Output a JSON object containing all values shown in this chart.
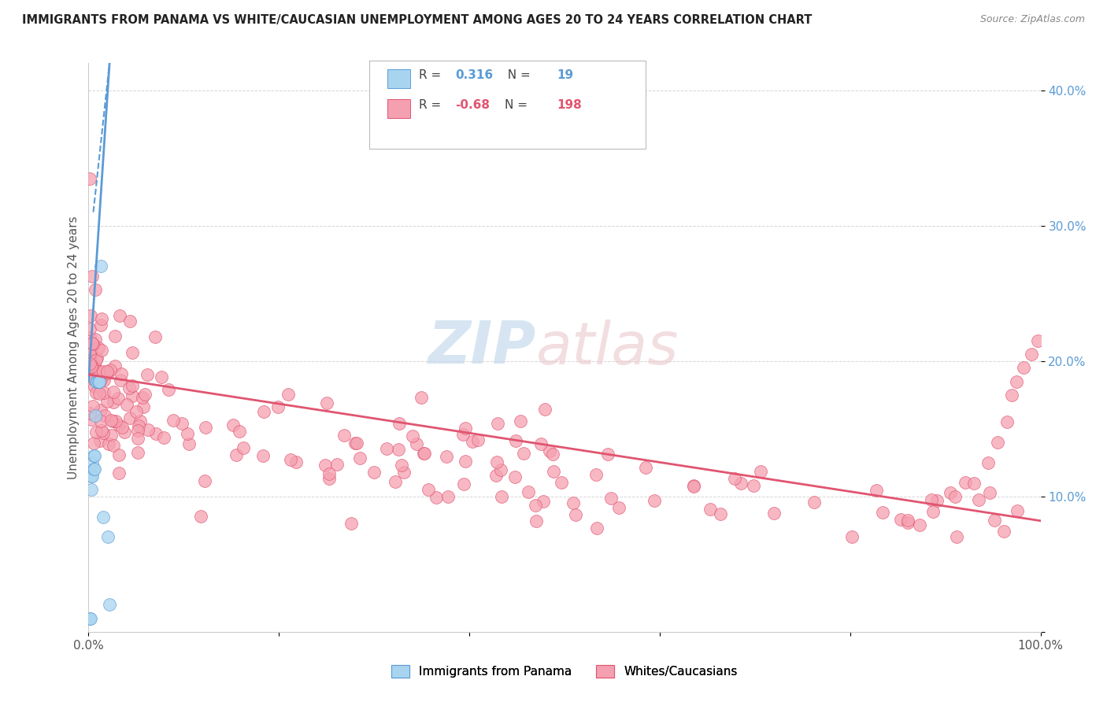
{
  "title": "IMMIGRANTS FROM PANAMA VS WHITE/CAUCASIAN UNEMPLOYMENT AMONG AGES 20 TO 24 YEARS CORRELATION CHART",
  "source": "Source: ZipAtlas.com",
  "ylabel": "Unemployment Among Ages 20 to 24 years",
  "xlim": [
    0.0,
    1.0
  ],
  "ylim": [
    0.0,
    0.42
  ],
  "blue_color": "#A8D4F0",
  "pink_color": "#F5A0B0",
  "blue_line_color": "#5B9BD5",
  "pink_line_color": "#E05570",
  "blue_edge_color": "#5B9BD5",
  "pink_edge_color": "#E05570",
  "R_blue": 0.316,
  "N_blue": 19,
  "R_pink": -0.68,
  "N_pink": 198,
  "legend_label_blue": "Immigrants from Panama",
  "legend_label_pink": "Whites/Caucasians",
  "blue_trend_x": [
    0.0,
    0.022
  ],
  "blue_trend_y": [
    0.185,
    0.42
  ],
  "pink_trend_x": [
    0.0,
    1.0
  ],
  "pink_trend_y": [
    0.19,
    0.082
  ]
}
